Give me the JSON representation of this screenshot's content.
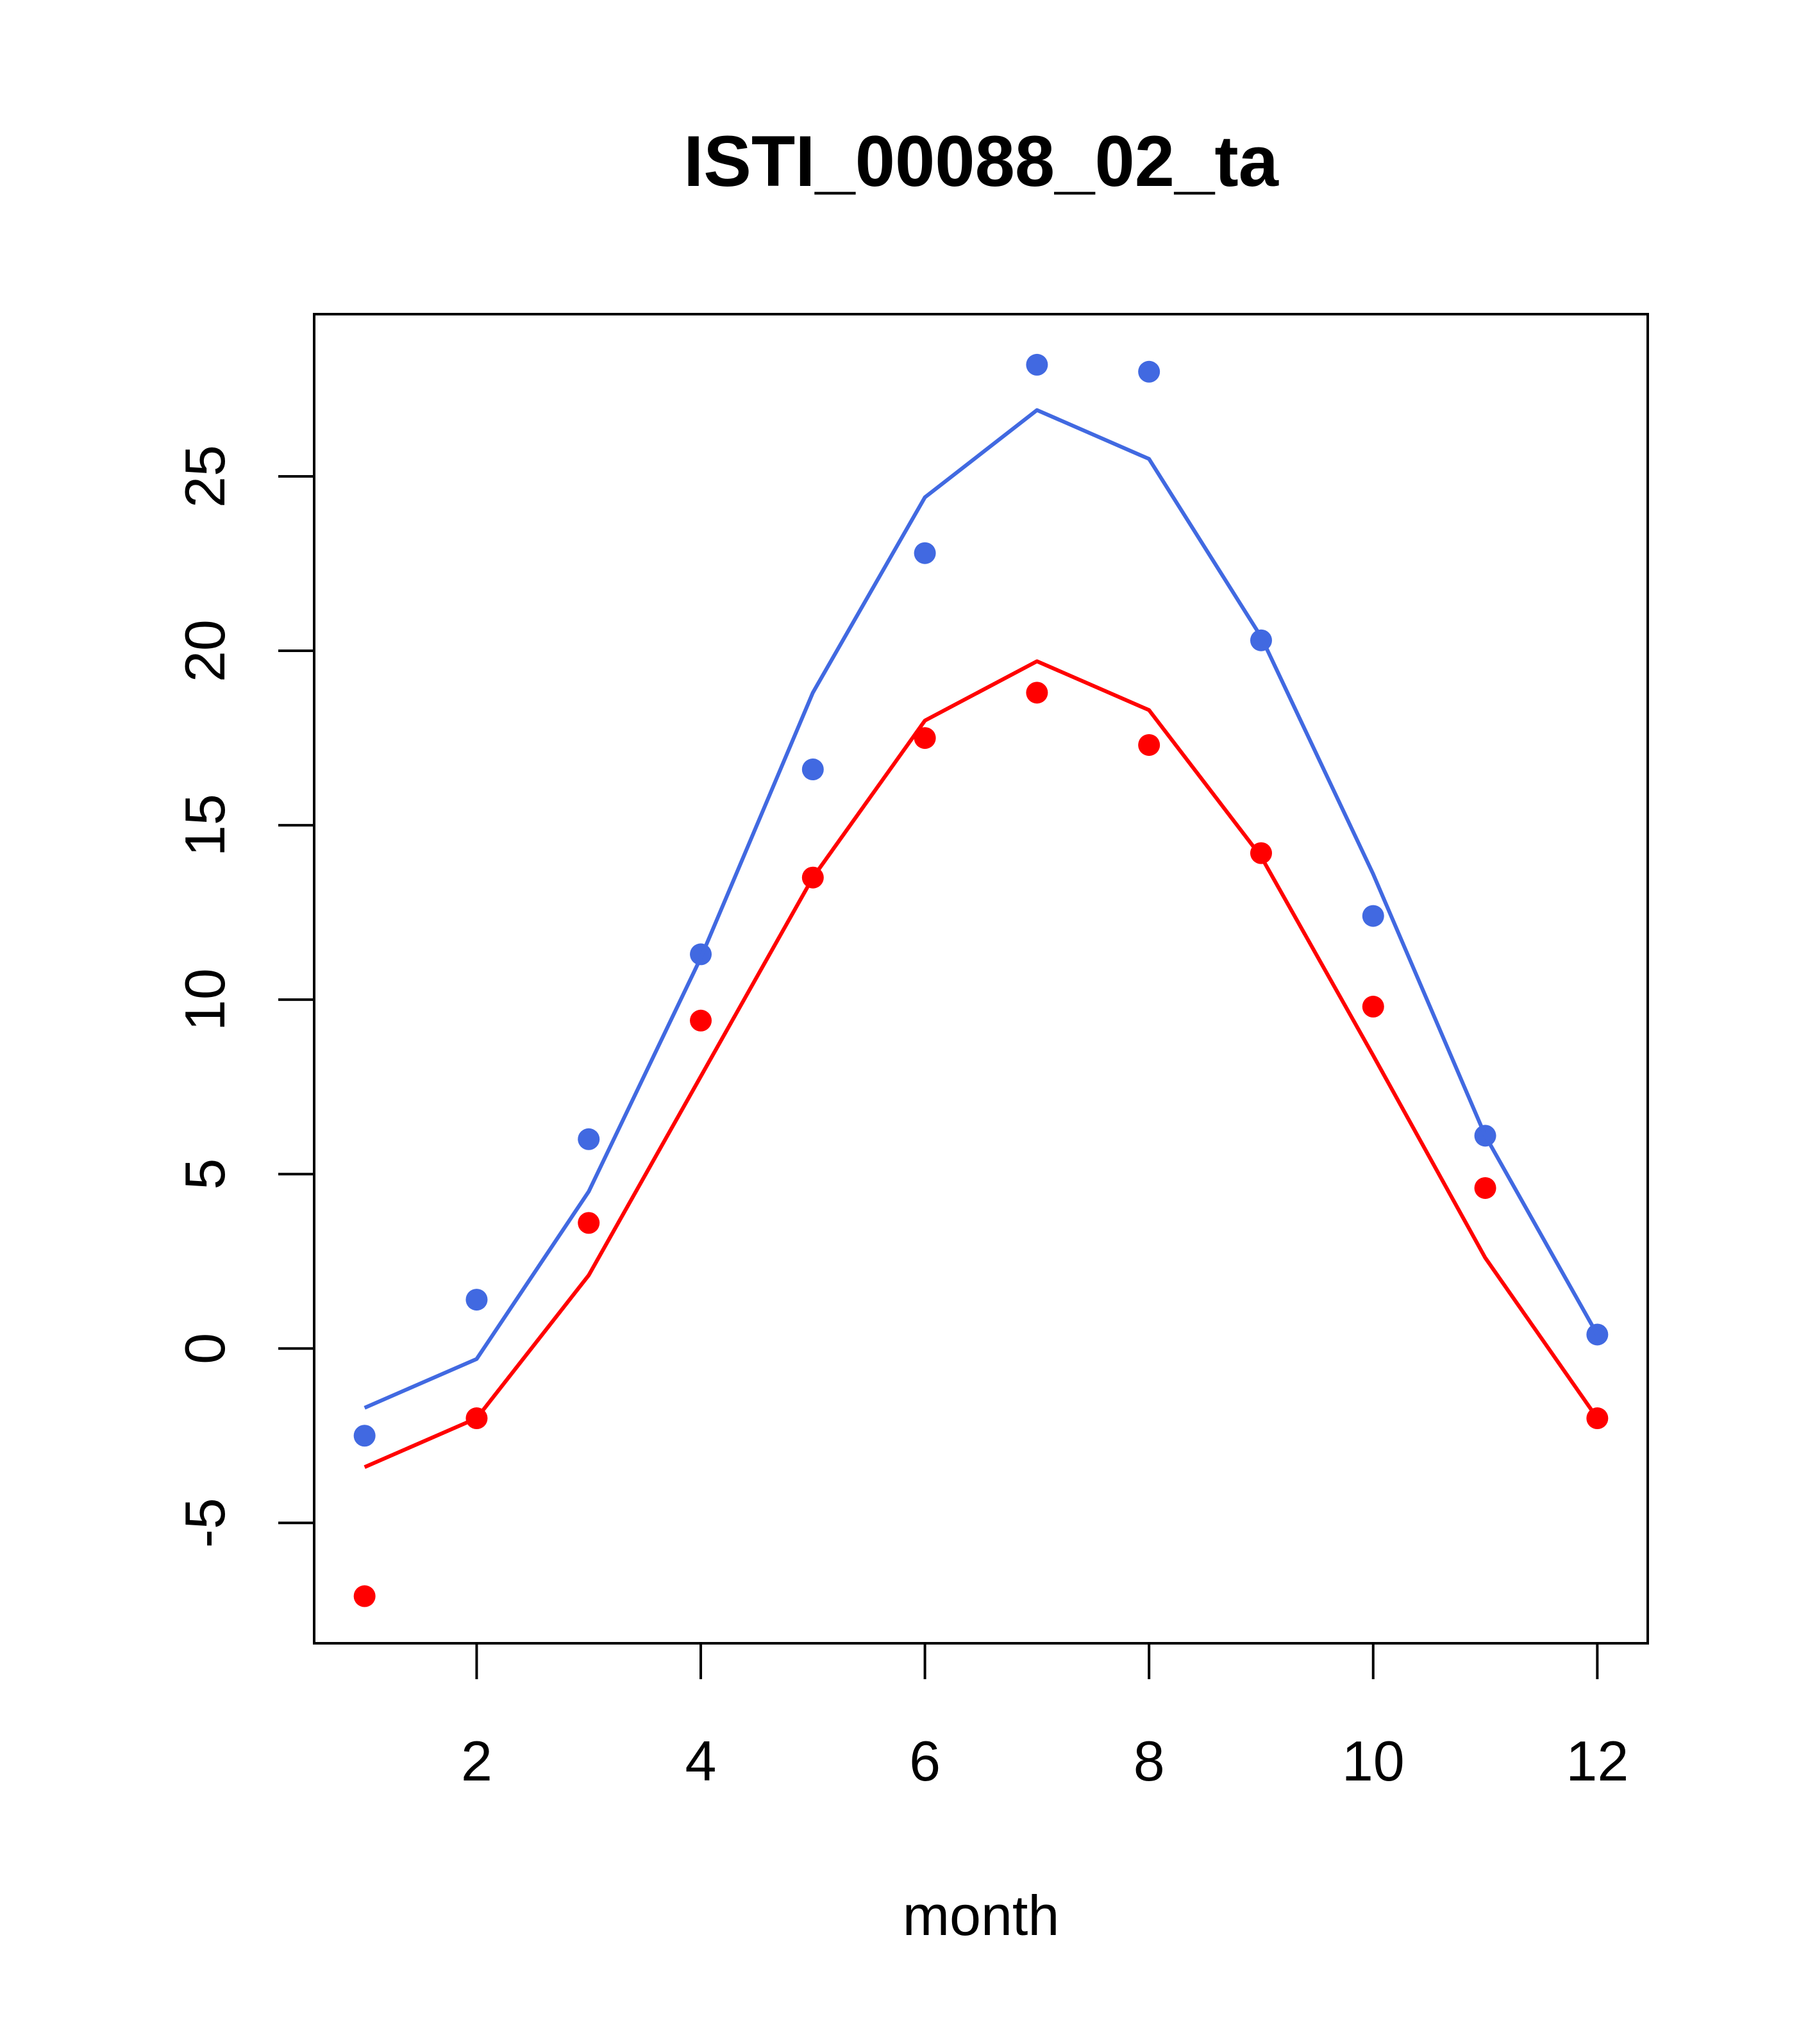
{
  "chart_data": {
    "type": "line",
    "title": "ISTI_00088_02_ta",
    "xlabel": "month",
    "ylabel": "",
    "xlim": [
      0.55,
      12.45
    ],
    "ylim": [
      -8.45,
      29.65
    ],
    "x_ticks": [
      2,
      4,
      6,
      8,
      10,
      12
    ],
    "y_ticks": [
      -5,
      0,
      5,
      10,
      15,
      20,
      25
    ],
    "x": [
      1,
      2,
      3,
      4,
      5,
      6,
      7,
      8,
      9,
      10,
      11,
      12
    ],
    "series": [
      {
        "kind": "points",
        "color": "#4169E1",
        "values": [
          -2.5,
          1.4,
          6.0,
          11.3,
          16.6,
          22.8,
          28.2,
          28.0,
          20.3,
          12.4,
          6.1,
          0.4
        ]
      },
      {
        "kind": "line",
        "color": "#4169E1",
        "values": [
          -1.7,
          -0.3,
          4.5,
          11.2,
          18.8,
          24.4,
          26.9,
          25.5,
          20.4,
          13.6,
          6.1,
          0.4
        ]
      },
      {
        "kind": "points",
        "color": "#FF0000",
        "values": [
          -7.1,
          -2.0,
          3.6,
          9.4,
          13.5,
          17.5,
          18.8,
          17.3,
          14.2,
          9.8,
          4.6,
          -2.0
        ]
      },
      {
        "kind": "line",
        "color": "#FF0000",
        "values": [
          -3.4,
          -2.0,
          2.1,
          7.8,
          13.5,
          18.0,
          19.7,
          18.3,
          14.1,
          8.4,
          2.6,
          -2.0
        ]
      }
    ]
  }
}
